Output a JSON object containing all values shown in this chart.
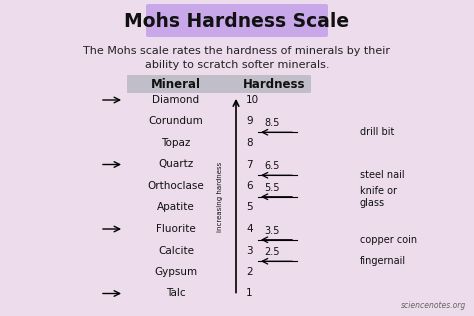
{
  "title": "Mohs Hardness Scale",
  "subtitle": "The Mohs scale rates the hardness of minerals by their\nability to scratch softer minerals.",
  "bg_color": "#ecdcec",
  "title_bg_color": "#c8a8e8",
  "table_header_bg": "#c0bec8",
  "col_mineral": "Mineral",
  "col_hardness": "Hardness",
  "minerals": [
    "Diamond",
    "Corundum",
    "Topaz",
    "Quartz",
    "Orthoclase",
    "Apatite",
    "Fluorite",
    "Calcite",
    "Gypsum",
    "Talc"
  ],
  "hardness": [
    10,
    9,
    8,
    7,
    6,
    5,
    4,
    3,
    2,
    1
  ],
  "arrow_minerals": [
    "Diamond",
    "Quartz",
    "Fluorite",
    "Talc"
  ],
  "tool_info": [
    [
      8.5,
      "8.5",
      "drill bit"
    ],
    [
      6.5,
      "6.5",
      "steel nail"
    ],
    [
      5.5,
      "5.5",
      "knife or\nglass"
    ],
    [
      3.5,
      "3.5",
      "copper coin"
    ],
    [
      2.5,
      "2.5",
      "fingernail"
    ]
  ],
  "axis_label": "increasing hardness",
  "credit": "sciencenotes.org",
  "text_color": "#111111",
  "subtitle_color": "#222222"
}
